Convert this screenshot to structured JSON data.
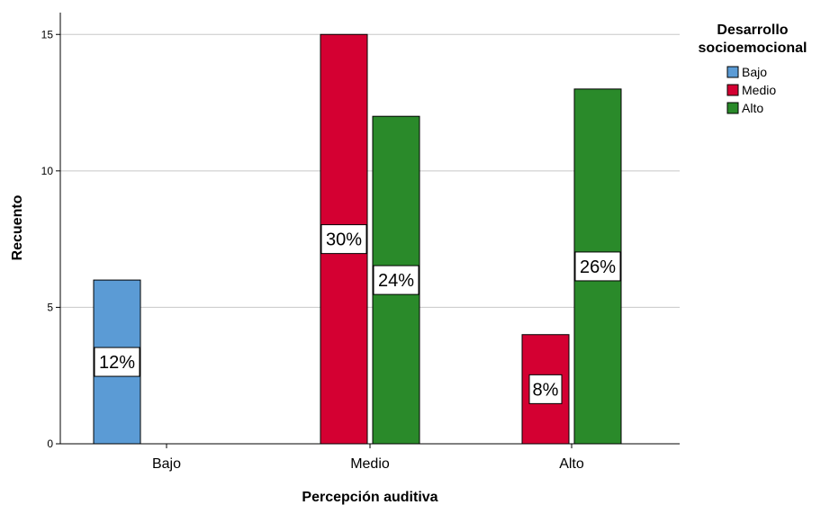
{
  "chart_data": {
    "type": "bar",
    "xlabel": "Percepción auditiva",
    "ylabel": "Recuento",
    "ylim": [
      0,
      15.8
    ],
    "yticks": [
      0,
      5,
      10,
      15
    ],
    "grid": true,
    "legend_position": "top-right",
    "legend_title": [
      "Desarrollo",
      "socioemocional"
    ],
    "categories": [
      "Bajo",
      "Medio",
      "Alto"
    ],
    "series": [
      {
        "name": "Bajo",
        "color": "#5b9bd5",
        "values": [
          6,
          0,
          0
        ],
        "labels": [
          "12%",
          "",
          ""
        ]
      },
      {
        "name": "Medio",
        "color": "#d40032",
        "values": [
          0,
          15,
          4
        ],
        "labels": [
          "",
          "30%",
          "8%"
        ]
      },
      {
        "name": "Alto",
        "color": "#2a8a2a",
        "values": [
          0,
          12,
          13
        ],
        "labels": [
          "",
          "24%",
          "26%"
        ]
      }
    ]
  }
}
